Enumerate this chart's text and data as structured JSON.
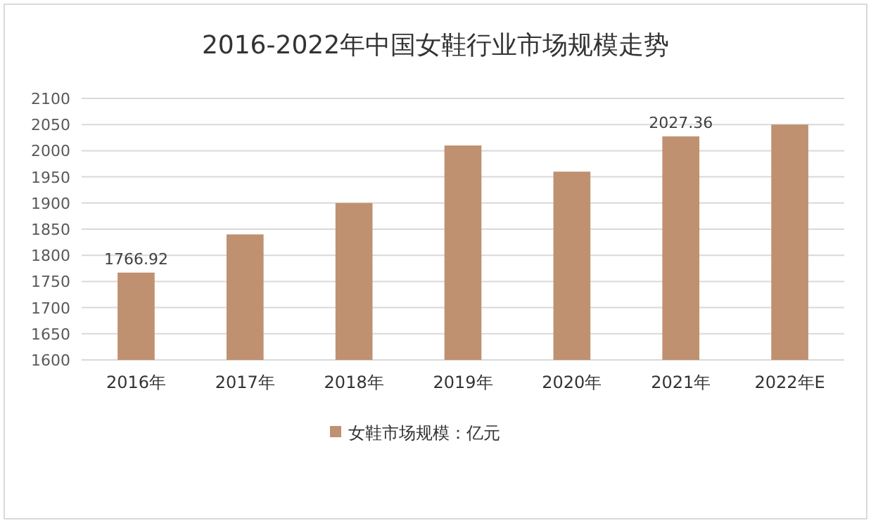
{
  "chart_data": {
    "type": "bar",
    "title": "2016-2022年中国女鞋行业市场规模走势",
    "categories": [
      "2016年",
      "2017年",
      "2018年",
      "2019年",
      "2020年",
      "2021年",
      "2022年E"
    ],
    "series": [
      {
        "name": "女鞋市场规模：亿元",
        "color": "#bf9170",
        "values": [
          1766.92,
          1840,
          1900,
          2010,
          1960,
          2027.36,
          2050
        ],
        "value_labels": [
          "1766.92",
          null,
          null,
          null,
          null,
          "2027.36",
          null
        ]
      }
    ],
    "ylim": [
      1600,
      2100
    ],
    "yticks": [
      1600,
      1650,
      1700,
      1750,
      1800,
      1850,
      1900,
      1950,
      2000,
      2050,
      2100
    ],
    "grid": "y",
    "legend": "bottom"
  }
}
